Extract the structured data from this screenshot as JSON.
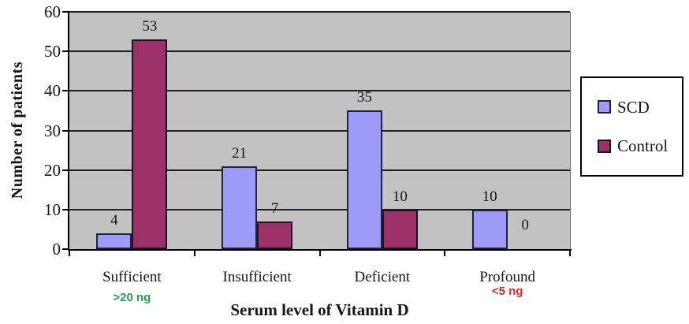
{
  "chart_data": {
    "type": "bar",
    "categories": [
      "Sufficient",
      "Insufficient",
      "Deficient",
      "Profound"
    ],
    "series": [
      {
        "name": "SCD",
        "values": [
          4,
          21,
          35,
          10
        ],
        "fill": "#9e9bf7",
        "border": "#202040"
      },
      {
        "name": "Control",
        "values": [
          53,
          7,
          10,
          0
        ],
        "fill": "#9c3168",
        "border": "#1a1326"
      }
    ],
    "title": "",
    "xlabel": "Serum level of Vitamin D",
    "ylabel": "Number of patients",
    "ylim": [
      0,
      60
    ],
    "ytick_interval": 10,
    "yticks": [
      0,
      10,
      20,
      30,
      40,
      50,
      60
    ],
    "grid": "horizontal-black-lines",
    "legend_position": "right-boxed",
    "plot_bg": "#c3c2c3",
    "data_labels_shown": true,
    "annotations": [
      {
        "category": "Sufficient",
        "category_index": 0,
        "text": ">20 ng",
        "color": "#1fa24a"
      },
      {
        "category": "Profound",
        "category_index": 3,
        "text": "<5 ng",
        "color": "#e32525"
      }
    ]
  }
}
